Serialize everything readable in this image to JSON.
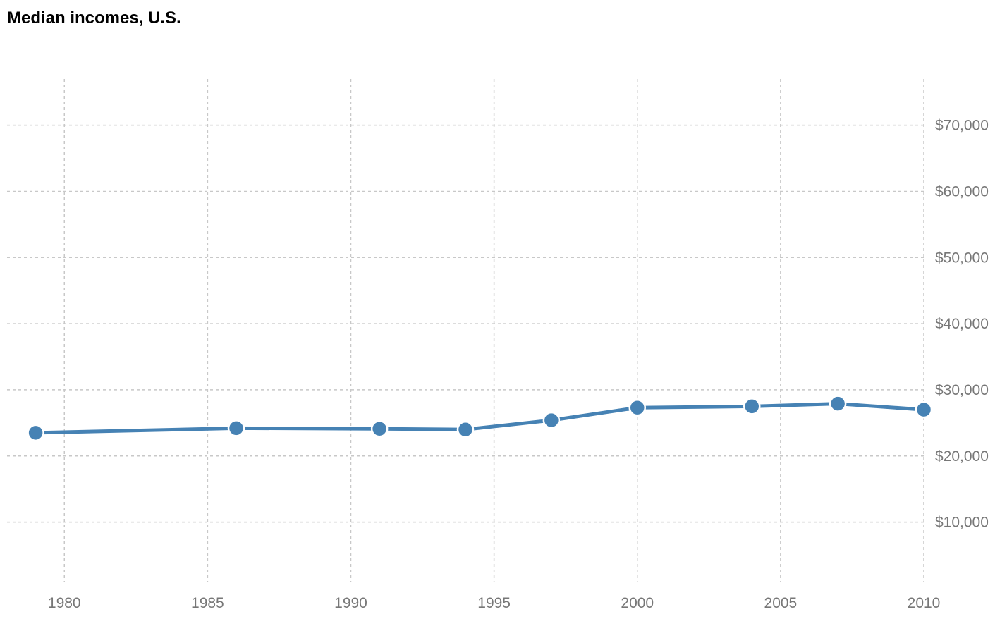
{
  "chart_data": {
    "type": "line",
    "title": "Median incomes, U.S.",
    "xlabel": "",
    "ylabel": "",
    "x": [
      1979,
      1986,
      1991,
      1994,
      1997,
      2000,
      2004,
      2007,
      2010
    ],
    "series": [
      {
        "values": [
          23500,
          24200,
          24100,
          24000,
          25400,
          27300,
          27500,
          27900,
          27000
        ],
        "color": "#4682b4"
      }
    ],
    "x_ticks": [
      1980,
      1985,
      1990,
      1995,
      2000,
      2005,
      2010
    ],
    "x_tick_labels": [
      "1980",
      "1985",
      "1990",
      "1995",
      "2000",
      "2005",
      "2010"
    ],
    "y_ticks": [
      10000,
      20000,
      30000,
      40000,
      50000,
      60000,
      70000
    ],
    "y_tick_labels": [
      "$10,000",
      "$20,000",
      "$30,000",
      "$40,000",
      "$50,000",
      "$60,000",
      "$70,000"
    ],
    "xlim": [
      1978,
      2010
    ],
    "ylim": [
      1000,
      77000
    ],
    "y_axis_position": "right",
    "grid": true,
    "grid_color": "#c8c8c8",
    "tick_label_color": "#777777"
  }
}
